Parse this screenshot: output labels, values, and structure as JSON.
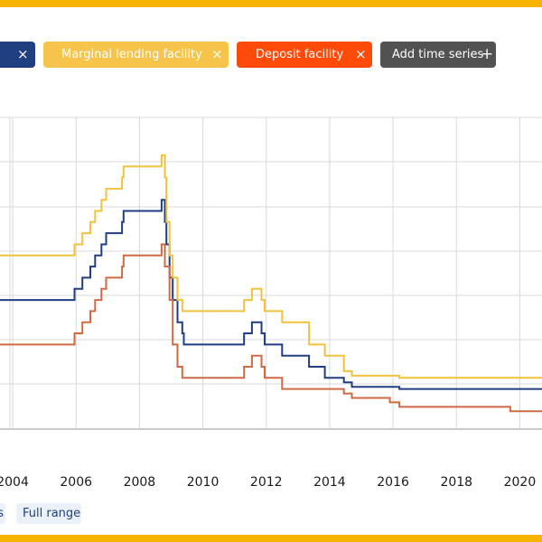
{
  "colors": {
    "frame": "#f6b400",
    "main_refinancing": "#1f3f80",
    "marginal_lending": "#f2c23c",
    "deposit": "#ff4b0a",
    "deposit_line": "#cf6a43",
    "add_chip": "#525252",
    "grid": "#d9d9d9",
    "tick_text": "#1a1a1a",
    "range_bg": "#eaf1f8",
    "range_text": "#1f3f80"
  },
  "chips": [
    {
      "id": "main",
      "label": "",
      "close": "×",
      "color": "#1f3f80"
    },
    {
      "id": "mlf",
      "label": "Marginal lending facility",
      "close": "×",
      "color": "#f6c44a"
    },
    {
      "id": "df",
      "label": "Deposit facility",
      "close": "×",
      "color": "#ff4b0a"
    },
    {
      "id": "add",
      "label": "Add time series",
      "close": "+",
      "color": "#525252"
    }
  ],
  "range_buttons": {
    "prev_label": "s",
    "full_label": "Full range"
  },
  "chart_data": {
    "type": "line",
    "x_ticks": [
      "2004",
      "2006",
      "2008",
      "2010",
      "2012",
      "2014",
      "2016",
      "2018",
      "2020"
    ],
    "xlim": [
      2003.6,
      2020.7
    ],
    "ylim": [
      -0.9,
      6.1
    ],
    "grid": true,
    "series": [
      {
        "id": "main_refinancing",
        "color": "#1f3f80",
        "steps": [
          [
            2003.6,
            2.0
          ],
          [
            2005.95,
            2.25
          ],
          [
            2006.2,
            2.5
          ],
          [
            2006.45,
            2.75
          ],
          [
            2006.6,
            3.0
          ],
          [
            2006.8,
            3.25
          ],
          [
            2006.95,
            3.5
          ],
          [
            2007.45,
            3.75
          ],
          [
            2007.5,
            4.0
          ],
          [
            2008.7,
            4.25
          ],
          [
            2008.8,
            3.75
          ],
          [
            2008.85,
            3.25
          ],
          [
            2008.95,
            2.5
          ],
          [
            2009.05,
            2.0
          ],
          [
            2009.2,
            1.5
          ],
          [
            2009.35,
            1.25
          ],
          [
            2009.4,
            1.0
          ],
          [
            2011.3,
            1.25
          ],
          [
            2011.55,
            1.5
          ],
          [
            2011.85,
            1.25
          ],
          [
            2011.95,
            1.0
          ],
          [
            2012.5,
            0.75
          ],
          [
            2013.35,
            0.5
          ],
          [
            2013.85,
            0.25
          ],
          [
            2014.45,
            0.15
          ],
          [
            2014.7,
            0.05
          ],
          [
            2016.2,
            0.0
          ],
          [
            2020.7,
            0.0
          ]
        ]
      },
      {
        "id": "marginal_lending",
        "color": "#f2c23c",
        "steps": [
          [
            2003.6,
            3.0
          ],
          [
            2005.95,
            3.25
          ],
          [
            2006.2,
            3.5
          ],
          [
            2006.45,
            3.75
          ],
          [
            2006.6,
            4.0
          ],
          [
            2006.8,
            4.25
          ],
          [
            2006.95,
            4.5
          ],
          [
            2007.45,
            4.75
          ],
          [
            2007.5,
            5.0
          ],
          [
            2008.7,
            5.25
          ],
          [
            2008.8,
            4.75
          ],
          [
            2008.85,
            3.75
          ],
          [
            2008.95,
            3.0
          ],
          [
            2009.05,
            2.5
          ],
          [
            2009.2,
            2.0
          ],
          [
            2009.35,
            1.75
          ],
          [
            2011.3,
            2.0
          ],
          [
            2011.55,
            2.25
          ],
          [
            2011.85,
            2.0
          ],
          [
            2011.95,
            1.75
          ],
          [
            2012.5,
            1.5
          ],
          [
            2013.35,
            1.0
          ],
          [
            2013.85,
            0.75
          ],
          [
            2014.45,
            0.4
          ],
          [
            2014.7,
            0.3
          ],
          [
            2016.2,
            0.25
          ],
          [
            2020.7,
            0.25
          ]
        ]
      },
      {
        "id": "deposit",
        "color": "#cf6a43",
        "steps": [
          [
            2003.6,
            1.0
          ],
          [
            2005.95,
            1.25
          ],
          [
            2006.2,
            1.5
          ],
          [
            2006.45,
            1.75
          ],
          [
            2006.6,
            2.0
          ],
          [
            2006.8,
            2.25
          ],
          [
            2006.95,
            2.5
          ],
          [
            2007.45,
            2.75
          ],
          [
            2007.5,
            3.0
          ],
          [
            2008.7,
            3.25
          ],
          [
            2008.8,
            2.75
          ],
          [
            2008.85,
            2.75
          ],
          [
            2008.95,
            2.0
          ],
          [
            2009.05,
            1.0
          ],
          [
            2009.2,
            0.5
          ],
          [
            2009.35,
            0.25
          ],
          [
            2011.3,
            0.5
          ],
          [
            2011.55,
            0.75
          ],
          [
            2011.85,
            0.5
          ],
          [
            2011.95,
            0.25
          ],
          [
            2012.5,
            0.0
          ],
          [
            2014.45,
            -0.1
          ],
          [
            2014.7,
            -0.2
          ],
          [
            2015.9,
            -0.3
          ],
          [
            2016.2,
            -0.4
          ],
          [
            2019.7,
            -0.5
          ],
          [
            2020.7,
            -0.5
          ]
        ]
      }
    ]
  }
}
